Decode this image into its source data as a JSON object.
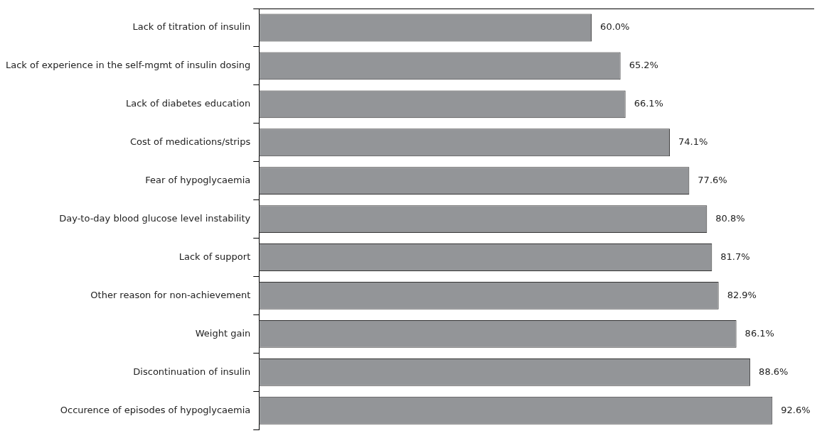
{
  "chart_data": {
    "type": "bar",
    "orientation": "horizontal",
    "categories": [
      "Lack of titration of insulin",
      "Lack of experience in the self-mgmt of insulin dosing",
      "Lack of diabetes education",
      "Cost of medications/strips",
      "Fear of hypoglycaemia",
      "Day-to-day blood glucose level instability",
      "Lack of support",
      "Other reason for non-achievement",
      "Weight gain",
      "Discontinuation of insulin",
      "Occurence of episodes of hypoglycaemia"
    ],
    "values": [
      60.0,
      65.2,
      66.1,
      74.1,
      77.6,
      80.8,
      81.7,
      82.9,
      86.1,
      88.6,
      92.6
    ],
    "value_labels": [
      "60.0%",
      "65.2%",
      "66.1%",
      "74.1%",
      "77.6%",
      "80.8%",
      "81.7%",
      "82.9%",
      "86.1%",
      "88.6%",
      "92.6%"
    ],
    "color": "#939598",
    "xlim": [
      0,
      100
    ],
    "tick_labels": "y",
    "legend": false
  }
}
